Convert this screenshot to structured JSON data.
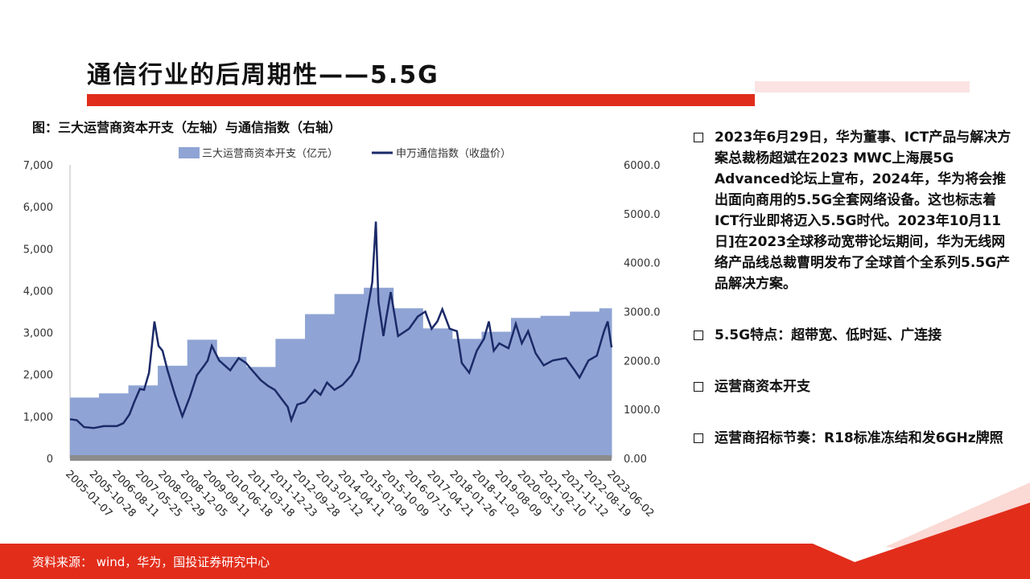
{
  "header": {
    "title": "通信行业的后周期性——5.5G"
  },
  "chart_data": {
    "type": "bar-line",
    "title": "图：三大运营商资本开支（左轴）与通信指数（右轴）",
    "xlim": [
      "2005-01-07",
      "2023-06-02"
    ],
    "xticks": [
      "2005-01-07",
      "2005-10-28",
      "2006-08-11",
      "2007-05-25",
      "2008-02-29",
      "2008-12-05",
      "2009-09-11",
      "2010-06-18",
      "2011-03-18",
      "2011-12-23",
      "2012-09-28",
      "2013-07-12",
      "2014-04-11",
      "2015-01-09",
      "2015-10-09",
      "2016-07-15",
      "2017-04-21",
      "2018-01-26",
      "2018-11-02",
      "2019-08-09",
      "2020-05-15",
      "2021-02-10",
      "2021-11-12",
      "2022-08-19",
      "2023-06-02"
    ],
    "ylim": [
      0,
      7000
    ],
    "yticks": [
      0,
      {
        "value": 1000,
        "label": "1,000"
      },
      {
        "value": 2000,
        "label": "2,000"
      },
      {
        "value": 3000,
        "label": "3,000"
      },
      {
        "value": 4000,
        "label": "4,000"
      },
      {
        "value": 5000,
        "label": "5,000"
      },
      {
        "value": 6000,
        "label": "6,000"
      },
      {
        "value": 7000,
        "label": "7,000"
      }
    ],
    "y2lim": [
      0,
      6000
    ],
    "y2ticks": [
      {
        "value": 0,
        "label": "0.00"
      },
      {
        "value": 1000,
        "label": "1000.00"
      },
      {
        "value": 2000,
        "label": "2000.00"
      },
      {
        "value": 3000,
        "label": "3000.00"
      },
      {
        "value": 4000,
        "label": "4000.00"
      },
      {
        "value": 5000,
        "label": "5000.00"
      },
      {
        "value": 6000,
        "label": "6000.00"
      }
    ],
    "series": [
      {
        "name": "三大运营商资本开支（亿元）",
        "type": "step-area",
        "color": "#8fa4d4",
        "x": [
          "2005-01-07",
          "2006-01-01",
          "2007-01-01",
          "2008-01-01",
          "2009-01-01",
          "2010-01-01",
          "2011-01-01",
          "2012-01-01",
          "2013-01-01",
          "2014-01-01",
          "2015-01-01",
          "2016-01-01",
          "2017-01-01",
          "2018-01-01",
          "2019-01-01",
          "2020-01-01",
          "2021-01-01",
          "2022-01-01",
          "2023-01-01"
        ],
        "values": [
          1450,
          1550,
          1740,
          2210,
          2830,
          2420,
          2180,
          2850,
          3440,
          3920,
          4070,
          3580,
          3100,
          2850,
          3020,
          3350,
          3400,
          3500,
          3580
        ]
      },
      {
        "name": "申万通信指数（收盘价）",
        "type": "line",
        "color": "#1b2a68",
        "axis": "y2",
        "x": [
          "2005-01-07",
          "2005-04-01",
          "2005-07-01",
          "2005-10-28",
          "2006-03-01",
          "2006-08-11",
          "2006-11-01",
          "2007-01-15",
          "2007-03-15",
          "2007-05-25",
          "2007-07-15",
          "2007-09-15",
          "2007-11-20",
          "2008-01-10",
          "2008-02-29",
          "2008-05-01",
          "2008-08-01",
          "2008-11-01",
          "2009-02-01",
          "2009-05-01",
          "2009-08-01",
          "2009-09-11",
          "2009-11-01",
          "2010-02-01",
          "2010-06-18",
          "2010-10-01",
          "2011-01-01",
          "2011-03-18",
          "2011-07-01",
          "2011-10-01",
          "2011-12-23",
          "2012-03-01",
          "2012-06-01",
          "2012-07-15",
          "2012-09-28",
          "2013-01-01",
          "2013-05-01",
          "2013-07-12",
          "2013-10-01",
          "2014-01-01",
          "2014-04-11",
          "2014-08-01",
          "2014-11-01",
          "2015-02-01",
          "2015-04-15",
          "2015-05-30",
          "2015-07-01",
          "2015-09-01",
          "2015-10-09",
          "2015-12-01",
          "2016-03-01",
          "2016-07-15",
          "2016-11-01",
          "2017-02-01",
          "2017-04-21",
          "2017-07-01",
          "2017-09-01",
          "2017-12-01",
          "2018-03-01",
          "2018-05-01",
          "2018-08-01",
          "2018-11-02",
          "2019-02-01",
          "2019-04-01",
          "2019-06-01",
          "2019-08-09",
          "2019-12-01",
          "2020-03-01",
          "2020-05-15",
          "2020-08-01",
          "2020-11-01",
          "2021-02-10",
          "2021-06-01",
          "2021-11-12",
          "2022-03-01",
          "2022-05-01",
          "2022-08-19",
          "2022-12-01",
          "2023-03-01",
          "2023-04-15",
          "2023-06-02"
        ],
        "values": [
          800,
          780,
          640,
          620,
          660,
          660,
          720,
          900,
          1150,
          1420,
          1400,
          1750,
          2800,
          2300,
          2200,
          1800,
          1300,
          860,
          1250,
          1700,
          1900,
          2000,
          2300,
          2000,
          1800,
          2050,
          1950,
          1800,
          1600,
          1480,
          1400,
          1250,
          1050,
          780,
          1100,
          1150,
          1400,
          1300,
          1550,
          1400,
          1500,
          1700,
          2000,
          2900,
          3600,
          4840,
          3200,
          2500,
          2900,
          3400,
          2500,
          2650,
          2900,
          3000,
          2650,
          2800,
          3050,
          2650,
          2600,
          1950,
          1750,
          2200,
          2450,
          2800,
          2200,
          2350,
          2250,
          2750,
          2350,
          2600,
          2150,
          1900,
          2000,
          2050,
          1800,
          1650,
          2000,
          2100,
          2600,
          2800,
          2270
        ]
      }
    ]
  },
  "bullets": [
    "2023年6月29日，华为董事、ICT产品与解决方案总裁杨超斌在2023 MWC上海展5G Advanced论坛上宣布，2024年，华为将会推出面向商用的5.5G全套网络设备。这也标志着ICT行业即将迈入5.5G时代。2023年10月11日]在2023全球移动宽带论坛期间，华为无线网络产品线总裁曹明发布了全球首个全系列5.5G产品解决方案。",
    "5.5G特点：超带宽、低时延、广连接",
    "运营商资本开支",
    "运营商招标节奏：R18标准冻结和发6GHz牌照"
  ],
  "footer": {
    "source": "资料来源： wind，华为，国投证券研究中心"
  }
}
